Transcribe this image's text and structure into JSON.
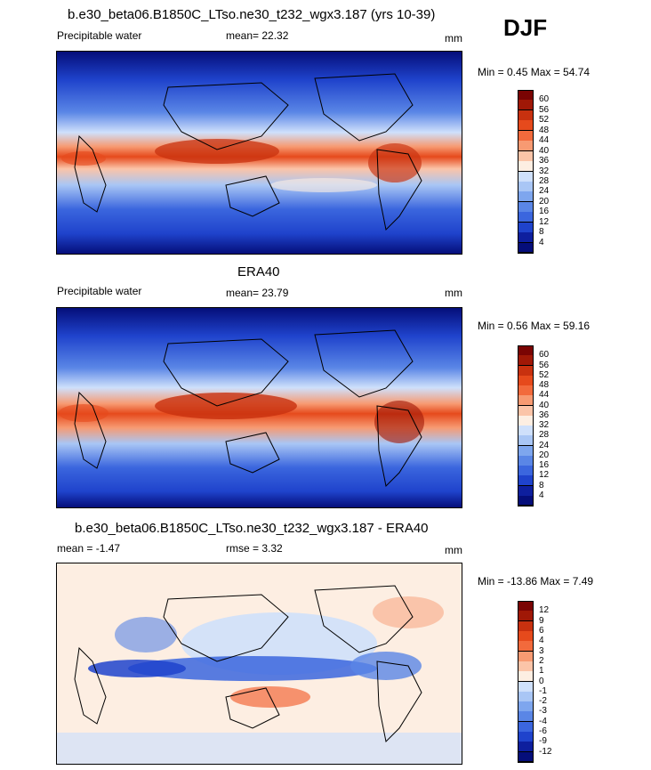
{
  "season": "DJF",
  "panels": [
    {
      "title": "b.e30_beta06.B1850C_LTso.ne30_t232_wgx3.187 (yrs 10-39)",
      "left_label": "Precipitable water",
      "center_label": "mean=  22.32",
      "right_label": "mm",
      "minmax": "Min =   0.45 Max =  54.74",
      "colorbar": {
        "levels": [
          "60",
          "56",
          "52",
          "48",
          "44",
          "40",
          "36",
          "32",
          "28",
          "24",
          "20",
          "16",
          "12",
          "8",
          "4"
        ],
        "colors": [
          "#7a0403",
          "#a01806",
          "#c8310f",
          "#e64a1c",
          "#f26a3c",
          "#f79a72",
          "#fbc4a8",
          "#fdeee2",
          "#cfe0fb",
          "#a9c6f5",
          "#7ea6ee",
          "#5a86e6",
          "#3b66de",
          "#1f43cc",
          "#0e1f9e",
          "#050e7a"
        ]
      }
    },
    {
      "title": "ERA40",
      "left_label": "Precipitable water",
      "center_label": "mean=  23.79",
      "right_label": "mm",
      "minmax": "Min =   0.56 Max =  59.16",
      "colorbar": {
        "levels": [
          "60",
          "56",
          "52",
          "48",
          "44",
          "40",
          "36",
          "32",
          "28",
          "24",
          "20",
          "16",
          "12",
          "8",
          "4"
        ],
        "colors": [
          "#7a0403",
          "#a01806",
          "#c8310f",
          "#e64a1c",
          "#f26a3c",
          "#f79a72",
          "#fbc4a8",
          "#fdeee2",
          "#cfe0fb",
          "#a9c6f5",
          "#7ea6ee",
          "#5a86e6",
          "#3b66de",
          "#1f43cc",
          "#0e1f9e",
          "#050e7a"
        ]
      }
    },
    {
      "title": "b.e30_beta06.B1850C_LTso.ne30_t232_wgx3.187 - ERA40",
      "left_label": "mean =  -1.47",
      "center_label": "rmse =   3.32",
      "right_label": "mm",
      "minmax": "Min = -13.86 Max =   7.49",
      "colorbar": {
        "levels": [
          "12",
          "9",
          "6",
          "4",
          "3",
          "2",
          "1",
          "0",
          "-1",
          "-2",
          "-3",
          "-4",
          "-6",
          "-9",
          "-12"
        ],
        "colors": [
          "#7a0403",
          "#a01806",
          "#c8310f",
          "#e64a1c",
          "#f26a3c",
          "#f79a72",
          "#fbc4a8",
          "#fdeee2",
          "#cfe0fb",
          "#a9c6f5",
          "#7ea6ee",
          "#5a86e6",
          "#3b66de",
          "#1f43cc",
          "#0e1f9e",
          "#050e7a"
        ]
      }
    }
  ]
}
